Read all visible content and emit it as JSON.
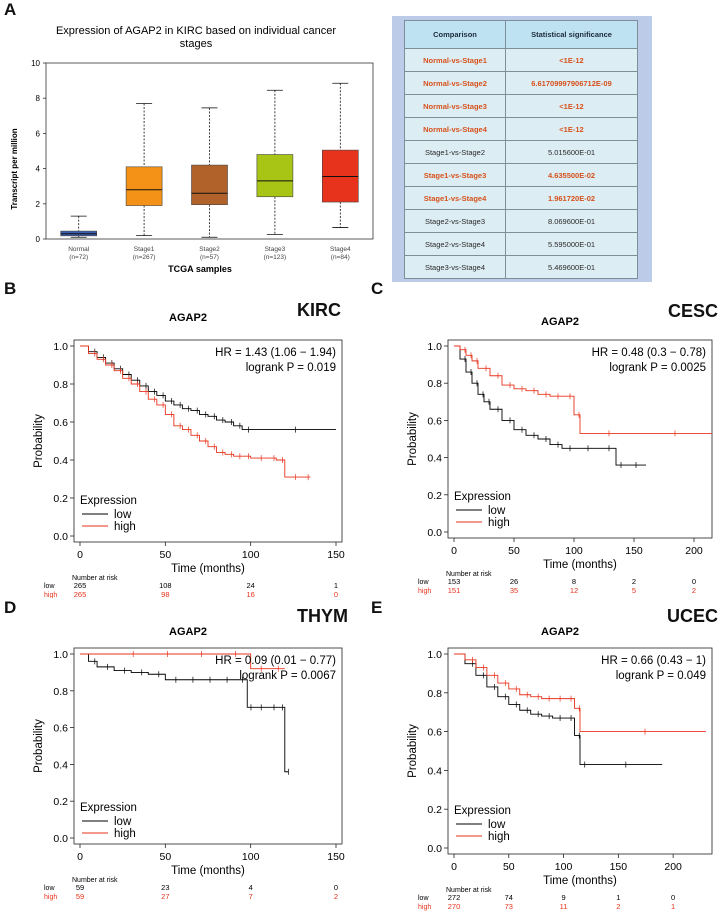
{
  "colors": {
    "low": "#000000",
    "high": "#e8331c",
    "table_sig": "#d6511b"
  },
  "panels": {
    "A": "A",
    "B": "B",
    "C": "C",
    "D": "D",
    "E": "E"
  },
  "boxplot": {
    "title_line1": "Expression of AGAP2 in KIRC based on individual cancer",
    "title_line2": "stages"
  },
  "table": {
    "headers": [
      "Comparison",
      "Statistical significance"
    ],
    "rows": [
      {
        "comparison": "Normal-vs-Stage1",
        "value": "<1E-12",
        "significant": true
      },
      {
        "comparison": "Normal-vs-Stage2",
        "value": "6.61709997906712E-09",
        "significant": true
      },
      {
        "comparison": "Normal-vs-Stage3",
        "value": "<1E-12",
        "significant": true
      },
      {
        "comparison": "Normal-vs-Stage4",
        "value": "<1E-12",
        "significant": true
      },
      {
        "comparison": "Stage1-vs-Stage2",
        "value": "5.015600E-01",
        "significant": false
      },
      {
        "comparison": "Stage1-vs-Stage3",
        "value": "4.635500E-02",
        "significant": true
      },
      {
        "comparison": "Stage1-vs-Stage4",
        "value": "1.961720E-02",
        "significant": true
      },
      {
        "comparison": "Stage2-vs-Stage3",
        "value": "8.069600E-01",
        "significant": false
      },
      {
        "comparison": "Stage2-vs-Stage4",
        "value": "5.595000E-01",
        "significant": false
      },
      {
        "comparison": "Stage3-vs-Stage4",
        "value": "5.469600E-01",
        "significant": false
      }
    ]
  },
  "chart_data": [
    {
      "type": "box",
      "id": "A",
      "title": "Expression of AGAP2 in KIRC based on individual cancer stages",
      "xlabel": "TCGA samples",
      "ylabel": "Transcript per million",
      "ylim": [
        0,
        10
      ],
      "yticks": [
        0,
        2,
        4,
        6,
        8,
        10
      ],
      "categories": [
        "Normal",
        "Stage1",
        "Stage2",
        "Stage3",
        "Stage4"
      ],
      "counts": [
        "(n=72)",
        "(n=267)",
        "(n=57)",
        "(n=123)",
        "(n=84)"
      ],
      "colors": [
        "#3a5fb0",
        "#f39216",
        "#b0622a",
        "#a8c414",
        "#e8331c"
      ],
      "boxes": [
        {
          "min": 0.1,
          "q1": 0.18,
          "median": 0.3,
          "q3": 0.45,
          "max": 1.3
        },
        {
          "min": 0.2,
          "q1": 1.9,
          "median": 2.8,
          "q3": 4.1,
          "max": 7.7
        },
        {
          "min": 0.1,
          "q1": 1.95,
          "median": 2.6,
          "q3": 4.2,
          "max": 7.45
        },
        {
          "min": 0.25,
          "q1": 2.4,
          "median": 3.3,
          "q3": 4.8,
          "max": 8.45
        },
        {
          "min": 0.65,
          "q1": 2.1,
          "median": 3.55,
          "q3": 5.05,
          "max": 8.85
        }
      ]
    },
    {
      "type": "line",
      "id": "B",
      "cancer": "KIRC",
      "gene": "AGAP2",
      "hr": "HR = 1.43 (1.06 − 1.94)",
      "logrank": "logrank P = 0.019",
      "xlabel": "Time (months)",
      "ylabel": "Probability",
      "xlim": [
        0,
        150
      ],
      "xticks": [
        0,
        50,
        100,
        150
      ],
      "ylim": [
        0,
        1
      ],
      "yticks": [
        0.0,
        0.2,
        0.4,
        0.6,
        0.8,
        1.0
      ],
      "legend_title": "Expression",
      "legend": [
        "low",
        "high"
      ],
      "series": [
        {
          "name": "low",
          "x": [
            0,
            5,
            10,
            15,
            20,
            25,
            30,
            35,
            40,
            45,
            50,
            55,
            60,
            65,
            70,
            75,
            80,
            85,
            90,
            95,
            100,
            150
          ],
          "y": [
            1.0,
            0.97,
            0.94,
            0.91,
            0.88,
            0.85,
            0.82,
            0.79,
            0.76,
            0.74,
            0.71,
            0.69,
            0.67,
            0.66,
            0.64,
            0.63,
            0.61,
            0.6,
            0.58,
            0.56,
            0.56,
            0.56
          ]
        },
        {
          "name": "high",
          "x": [
            0,
            5,
            10,
            15,
            20,
            25,
            30,
            35,
            40,
            45,
            50,
            55,
            60,
            65,
            70,
            75,
            80,
            85,
            90,
            95,
            100,
            110,
            115,
            120,
            130,
            135
          ],
          "y": [
            1.0,
            0.96,
            0.93,
            0.9,
            0.87,
            0.83,
            0.8,
            0.76,
            0.72,
            0.69,
            0.64,
            0.58,
            0.56,
            0.53,
            0.5,
            0.47,
            0.44,
            0.43,
            0.42,
            0.42,
            0.41,
            0.41,
            0.4,
            0.31,
            0.31,
            0.31
          ]
        }
      ],
      "risk": {
        "label": "Number at risk",
        "times": [
          0,
          50,
          100,
          150
        ],
        "low": [
          "265",
          "108",
          "24",
          "1"
        ],
        "high": [
          "265",
          "98",
          "16",
          "0"
        ]
      }
    },
    {
      "type": "line",
      "id": "C",
      "cancer": "CESC",
      "gene": "AGAP2",
      "hr": "HR = 0.48 (0.3 − 0.78)",
      "logrank": "logrank P = 0.0025",
      "xlabel": "Time (months)",
      "ylabel": "Probability",
      "xlim": [
        0,
        210
      ],
      "xticks": [
        0,
        50,
        100,
        150,
        200
      ],
      "ylim": [
        0,
        1
      ],
      "yticks": [
        0.0,
        0.2,
        0.4,
        0.6,
        0.8,
        1.0
      ],
      "legend_title": "Expression",
      "legend": [
        "low",
        "high"
      ],
      "series": [
        {
          "name": "low",
          "x": [
            0,
            5,
            10,
            15,
            20,
            25,
            30,
            40,
            50,
            60,
            70,
            80,
            90,
            100,
            120,
            135,
            140,
            160
          ],
          "y": [
            1.0,
            0.93,
            0.86,
            0.8,
            0.74,
            0.7,
            0.66,
            0.6,
            0.55,
            0.52,
            0.5,
            0.47,
            0.45,
            0.45,
            0.45,
            0.36,
            0.36,
            0.36
          ]
        },
        {
          "name": "high",
          "x": [
            0,
            5,
            10,
            15,
            20,
            30,
            40,
            50,
            60,
            70,
            80,
            90,
            100,
            105,
            150,
            215
          ],
          "y": [
            1.0,
            0.98,
            0.95,
            0.92,
            0.88,
            0.84,
            0.79,
            0.77,
            0.76,
            0.74,
            0.73,
            0.73,
            0.63,
            0.53,
            0.53,
            0.53
          ]
        }
      ],
      "risk": {
        "label": "Number at risk",
        "times": [
          0,
          50,
          100,
          150,
          200
        ],
        "low": [
          "153",
          "26",
          "8",
          "2",
          "0"
        ],
        "high": [
          "151",
          "35",
          "12",
          "5",
          "2"
        ]
      }
    },
    {
      "type": "line",
      "id": "D",
      "cancer": "THYM",
      "gene": "AGAP2",
      "hr": "HR = 0.09 (0.01 − 0.77)",
      "logrank": "logrank P = 0.0067",
      "xlabel": "Time (months)",
      "ylabel": "Probability",
      "xlim": [
        0,
        150
      ],
      "xticks": [
        0,
        50,
        100,
        150
      ],
      "ylim": [
        0,
        1
      ],
      "yticks": [
        0.0,
        0.2,
        0.4,
        0.6,
        0.8,
        1.0
      ],
      "legend_title": "Expression",
      "legend": [
        "low",
        "high"
      ],
      "series": [
        {
          "name": "low",
          "x": [
            0,
            5,
            10,
            20,
            30,
            40,
            50,
            60,
            70,
            80,
            90,
            98,
            100,
            110,
            115,
            120,
            122
          ],
          "y": [
            1.0,
            0.96,
            0.93,
            0.91,
            0.9,
            0.89,
            0.86,
            0.86,
            0.86,
            0.86,
            0.86,
            0.71,
            0.71,
            0.71,
            0.71,
            0.36,
            0.36
          ]
        },
        {
          "name": "high",
          "x": [
            0,
            20,
            40,
            60,
            80,
            100,
            110,
            120
          ],
          "y": [
            1.0,
            1.0,
            1.0,
            1.0,
            1.0,
            0.92,
            0.92,
            0.92
          ]
        }
      ],
      "risk": {
        "label": "Number at risk",
        "times": [
          0,
          50,
          100,
          150
        ],
        "low": [
          "59",
          "23",
          "4",
          "0"
        ],
        "high": [
          "59",
          "27",
          "7",
          "2"
        ]
      }
    },
    {
      "type": "line",
      "id": "E",
      "cancer": "UCEC",
      "gene": "AGAP2",
      "hr": "HR = 0.66 (0.43 − 1)",
      "logrank": "logrank P = 0.049",
      "xlabel": "Time (months)",
      "ylabel": "Probability",
      "xlim": [
        0,
        230
      ],
      "xticks": [
        0,
        50,
        100,
        150,
        200
      ],
      "ylim": [
        0,
        1
      ],
      "yticks": [
        0.0,
        0.2,
        0.4,
        0.6,
        0.8,
        1.0
      ],
      "legend_title": "Expression",
      "legend": [
        "low",
        "high"
      ],
      "series": [
        {
          "name": "low",
          "x": [
            0,
            10,
            20,
            30,
            40,
            50,
            60,
            70,
            80,
            90,
            100,
            110,
            115,
            120,
            190
          ],
          "y": [
            1.0,
            0.95,
            0.89,
            0.83,
            0.78,
            0.74,
            0.71,
            0.69,
            0.68,
            0.67,
            0.67,
            0.58,
            0.43,
            0.43,
            0.43
          ]
        },
        {
          "name": "high",
          "x": [
            0,
            10,
            20,
            30,
            40,
            50,
            60,
            70,
            80,
            90,
            100,
            110,
            115,
            230
          ],
          "y": [
            1.0,
            0.97,
            0.93,
            0.89,
            0.85,
            0.82,
            0.79,
            0.78,
            0.77,
            0.77,
            0.77,
            0.72,
            0.6,
            0.6
          ]
        }
      ],
      "risk": {
        "label": "Number at risk",
        "times": [
          0,
          50,
          100,
          150,
          200
        ],
        "low": [
          "272",
          "74",
          "9",
          "1",
          "0"
        ],
        "high": [
          "270",
          "73",
          "11",
          "2",
          "1"
        ]
      }
    }
  ]
}
